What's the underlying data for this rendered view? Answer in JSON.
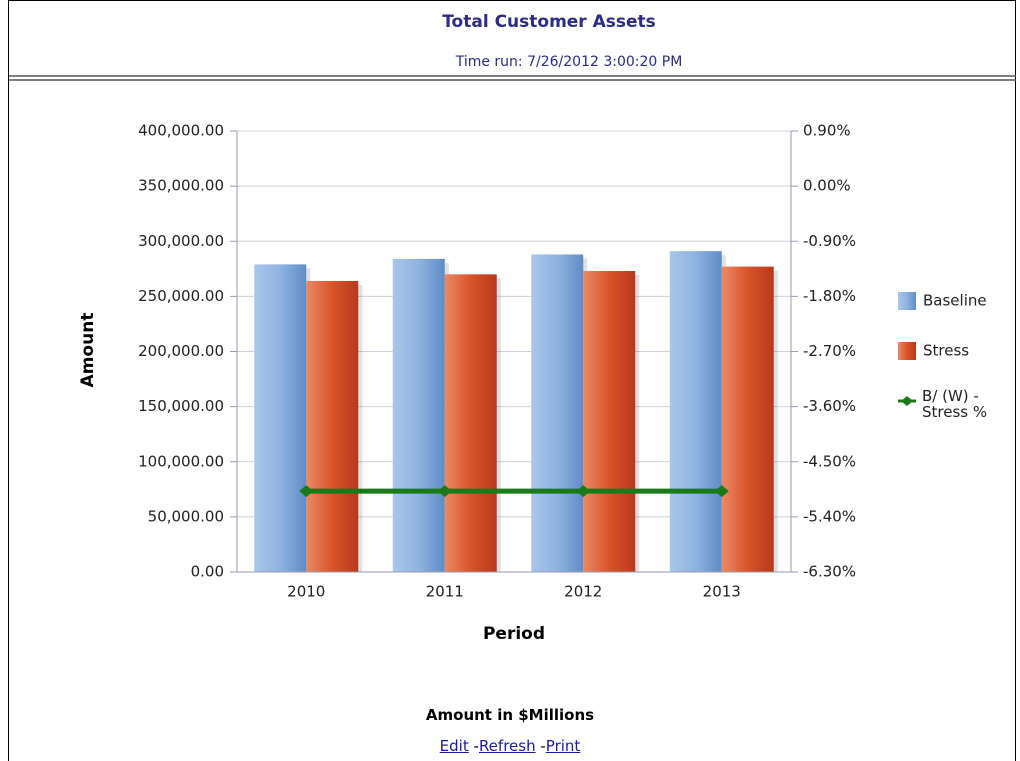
{
  "chart_data": {
    "type": "bar",
    "title": "Total Customer Assets",
    "subtitle": "Time run: 7/26/2012 3:00:20 PM",
    "x_label": "Period",
    "y_label": "Amount",
    "categories": [
      "2010",
      "2011",
      "2012",
      "2013"
    ],
    "series": [
      {
        "name": "Baseline",
        "color": "#7fa7d9",
        "values": [
          279000,
          284000,
          288000,
          291000
        ]
      },
      {
        "name": "Stress",
        "color": "#d9532b",
        "values": [
          264000,
          270000,
          273000,
          277000
        ]
      },
      {
        "name": "B/ (W) - Stress %",
        "color": "#1a7a1a",
        "type": "line",
        "axis": "y2",
        "values": [
          -4.98,
          -4.98,
          -4.98,
          -4.98
        ]
      }
    ],
    "ylim": [
      0,
      400000
    ],
    "yticks": [
      {
        "value": 0,
        "label": "0.00"
      },
      {
        "value": 50000,
        "label": "50,000.00"
      },
      {
        "value": 100000,
        "label": "100,000.00"
      },
      {
        "value": 150000,
        "label": "150,000.00"
      },
      {
        "value": 200000,
        "label": "200,000.00"
      },
      {
        "value": 250000,
        "label": "250,000.00"
      },
      {
        "value": 300000,
        "label": "300,000.00"
      },
      {
        "value": 350000,
        "label": "350,000.00"
      },
      {
        "value": 400000,
        "label": "400,000.00"
      }
    ],
    "y2lim": [
      -6.3,
      0.9
    ],
    "y2ticks": [
      {
        "value": -6.3,
        "label": "-6.30%"
      },
      {
        "value": -5.4,
        "label": "-5.40%"
      },
      {
        "value": -4.5,
        "label": "-4.50%"
      },
      {
        "value": -3.6,
        "label": "-3.60%"
      },
      {
        "value": -2.7,
        "label": "-2.70%"
      },
      {
        "value": -1.8,
        "label": "-1.80%"
      },
      {
        "value": -0.9,
        "label": "-0.90%"
      },
      {
        "value": 0,
        "label": "0.00%"
      },
      {
        "value": 0.9,
        "label": "0.90%"
      }
    ],
    "grid": true,
    "legend": "right"
  },
  "footer": {
    "note": "Amount in $Millions",
    "links": [
      "Edit",
      "Refresh",
      "Print"
    ],
    "separator": "-"
  }
}
